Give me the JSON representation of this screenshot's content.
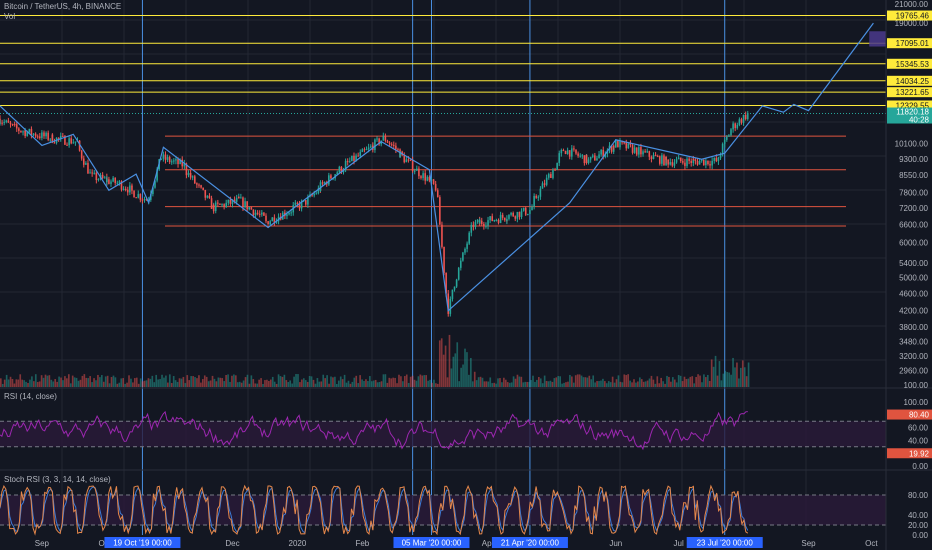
{
  "header": {
    "symbol_line": "Bitcoin / TetherUS, 4h, BINANCE",
    "vol_label": "Vol"
  },
  "colors": {
    "background": "#131722",
    "grid": "#232733",
    "up": "#26a69a",
    "down": "#ef5350",
    "horizontal_level": "#ffeb3b",
    "support_level": "#e0543f",
    "trend_line": "#4a90e2",
    "vertical_marker": "#4a90e2",
    "rsi_line": "#9c27b0",
    "rsi_band": "#2a1a3a",
    "stoch_k": "#e5874b",
    "stoch_d": "#3d7ad6",
    "projection_box": "#4b3a8c"
  },
  "chart_data": [
    {
      "type": "line",
      "pane": "price",
      "title": "Bitcoin / TetherUS, 4h, BINANCE",
      "y_scale": "log",
      "ylim": [
        4000,
        21000
      ],
      "y_ticks": [
        "21000.00",
        "19000.00",
        "10100.00",
        "9300.00",
        "8550.00",
        "7800.00",
        "7200.00",
        "6600.00",
        "6000.00",
        "5400.00",
        "5000.00",
        "4600.00",
        "4200.00",
        "3800.00",
        "3480.00",
        "3200.00",
        "2960.00",
        "100.00"
      ],
      "x_ticks": [
        "Sep",
        "Oct",
        "Dec",
        "2020",
        "Feb",
        "Apr",
        "Jun",
        "Jul",
        "Sep",
        "Oct"
      ],
      "x_range": [
        "2019-08-12",
        "2020-10-08"
      ],
      "price_path": [
        {
          "x": "2019-08-12",
          "y": 11500
        },
        {
          "x": "2019-08-20",
          "y": 10900
        },
        {
          "x": "2019-09-05",
          "y": 10400
        },
        {
          "x": "2019-09-18",
          "y": 10200
        },
        {
          "x": "2019-09-25",
          "y": 8500
        },
        {
          "x": "2019-10-08",
          "y": 8200
        },
        {
          "x": "2019-10-22",
          "y": 7500
        },
        {
          "x": "2019-10-28",
          "y": 9400
        },
        {
          "x": "2019-11-08",
          "y": 9000
        },
        {
          "x": "2019-11-22",
          "y": 7200
        },
        {
          "x": "2019-12-05",
          "y": 7500
        },
        {
          "x": "2019-12-18",
          "y": 6700
        },
        {
          "x": "2020-01-05",
          "y": 7400
        },
        {
          "x": "2020-01-20",
          "y": 8700
        },
        {
          "x": "2020-02-12",
          "y": 10400
        },
        {
          "x": "2020-02-28",
          "y": 8700
        },
        {
          "x": "2020-03-08",
          "y": 8000
        },
        {
          "x": "2020-03-13",
          "y": 4200
        },
        {
          "x": "2020-03-25",
          "y": 6600
        },
        {
          "x": "2020-04-21",
          "y": 7100
        },
        {
          "x": "2020-05-08",
          "y": 9800
        },
        {
          "x": "2020-05-20",
          "y": 9200
        },
        {
          "x": "2020-06-02",
          "y": 10100
        },
        {
          "x": "2020-06-25",
          "y": 9200
        },
        {
          "x": "2020-07-20",
          "y": 9200
        },
        {
          "x": "2020-07-27",
          "y": 11000
        },
        {
          "x": "2020-08-03",
          "y": 11800
        }
      ],
      "last_price": "11820.18",
      "countdown": "40:28"
    },
    {
      "type": "line",
      "pane": "price-overlay",
      "horizontal_levels": [
        {
          "label": "19765.46",
          "value": 19765.46,
          "color": "yellow"
        },
        {
          "label": "17095.01",
          "value": 17095.01,
          "color": "yellow"
        },
        {
          "label": "15345.53",
          "value": 15345.53,
          "color": "yellow"
        },
        {
          "label": "14034.25",
          "value": 14034.25,
          "color": "yellow"
        },
        {
          "label": "13221.65",
          "value": 13221.65,
          "color": "yellow"
        },
        {
          "label": "12329.55",
          "value": 12329.55,
          "color": "yellow"
        },
        {
          "value": 10500,
          "color": "red"
        },
        {
          "value": 8800,
          "color": "red"
        },
        {
          "value": 7250,
          "color": "red"
        },
        {
          "value": 6550,
          "color": "red"
        }
      ],
      "zigzag": [
        {
          "x": "2019-08-12",
          "y": 12300
        },
        {
          "x": "2019-09-01",
          "y": 10000
        },
        {
          "x": "2019-09-16",
          "y": 10600
        },
        {
          "x": "2019-10-03",
          "y": 7900
        },
        {
          "x": "2019-10-16",
          "y": 8600
        },
        {
          "x": "2019-10-22",
          "y": 7400
        },
        {
          "x": "2019-10-29",
          "y": 9900
        },
        {
          "x": "2019-12-18",
          "y": 6500
        },
        {
          "x": "2020-02-10",
          "y": 10200
        },
        {
          "x": "2020-03-04",
          "y": 8800
        },
        {
          "x": "2020-03-13",
          "y": 4200
        },
        {
          "x": "2020-05-10",
          "y": 7400
        },
        {
          "x": "2020-06-01",
          "y": 10300
        },
        {
          "x": "2020-07-12",
          "y": 9300
        },
        {
          "x": "2020-07-23",
          "y": 9600
        },
        {
          "x": "2020-08-10",
          "y": 12300
        },
        {
          "x": "2020-08-20",
          "y": 11900
        },
        {
          "x": "2020-08-25",
          "y": 12400
        },
        {
          "x": "2020-09-01",
          "y": 12000
        },
        {
          "x": "2020-10-02",
          "y": 19000
        }
      ],
      "vertical_markers": [
        {
          "x": "2019-10-19",
          "label": "19 Oct '19    00:00"
        },
        {
          "x": "2020-03-05",
          "label": "05 Mar '20    00:00"
        },
        {
          "x": "2020-04-21",
          "label": "21 Apr '20    00:00"
        },
        {
          "x": "2020-07-23",
          "label": "23 Jul '20    00:00"
        }
      ],
      "extra_vertical_markers": [
        {
          "x": "2020-02-25"
        }
      ]
    },
    {
      "type": "bar",
      "pane": "volume",
      "title": "Vol",
      "note": "volume histogram, relative heights only"
    },
    {
      "type": "line",
      "pane": "rsi",
      "title": "RSI (14, close)",
      "ylim": [
        0,
        100
      ],
      "y_ticks": [
        "100.00",
        "80.40",
        "60.00",
        "40.00",
        "19.92",
        "0.00"
      ],
      "bands": [
        70,
        30
      ],
      "last_values": [
        "80.40",
        "19.92"
      ]
    },
    {
      "type": "line",
      "pane": "stoch_rsi",
      "title": "Stoch RSI (3, 3, 14, 14, close)",
      "ylim": [
        0,
        100
      ],
      "y_ticks": [
        "80.00",
        "40.00",
        "20.00",
        "0.00"
      ],
      "bands": [
        80,
        20
      ]
    }
  ]
}
